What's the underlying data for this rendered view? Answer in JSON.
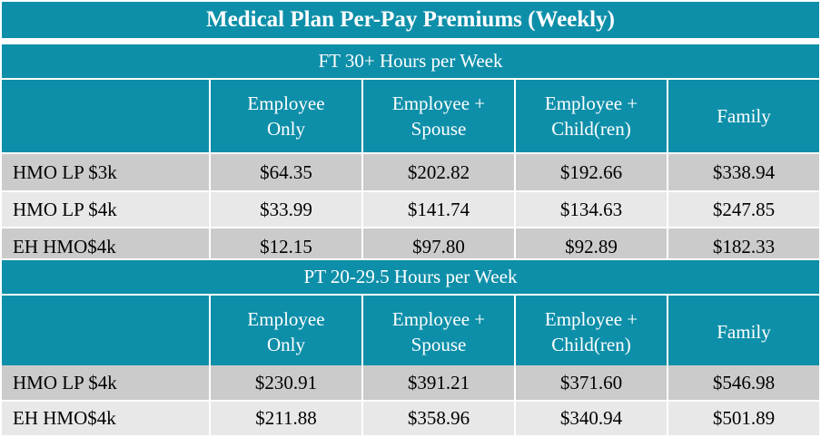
{
  "title": "Medical Plan Per-Pay Premiums (Weekly)",
  "sections": [
    {
      "heading": "FT 30+ Hours per Week",
      "columns": [
        "",
        "Employee\nOnly",
        "Employee +\nSpouse",
        "Employee +\nChild(ren)",
        "Family"
      ],
      "rows": [
        [
          "HMO LP $3k",
          "$64.35",
          "$202.82",
          "$192.66",
          "$338.94"
        ],
        [
          "HMO LP $4k",
          "$33.99",
          "$141.74",
          "$134.63",
          "$247.85"
        ],
        [
          "EH HMO$4k",
          "$12.15",
          "$97.80",
          "$92.89",
          "$182.33"
        ]
      ]
    },
    {
      "heading": "PT 20-29.5 Hours per Week",
      "columns": [
        "",
        "Employee\nOnly",
        "Employee +\nSpouse",
        "Employee +\nChild(ren)",
        "Family"
      ],
      "rows": [
        [
          "HMO LP $4k",
          "$230.91",
          "$391.21",
          "$371.60",
          "$546.98"
        ],
        [
          "EH HMO$4k",
          "$211.88",
          "$358.96",
          "$340.94",
          "$501.89"
        ]
      ]
    }
  ],
  "colors": {
    "header": "#0e8fa9",
    "row_dark": "#cbcbcb",
    "row_light": "#e8e8e8"
  }
}
